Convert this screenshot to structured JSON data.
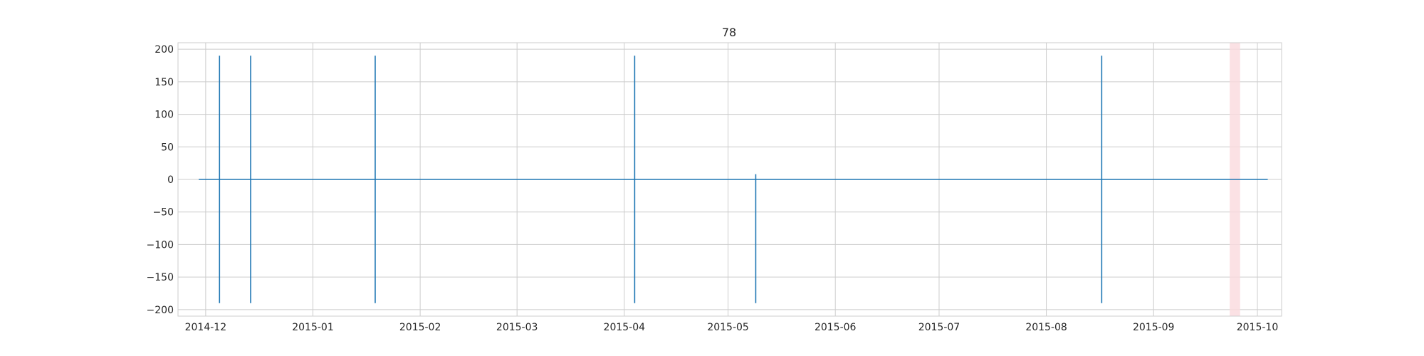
{
  "chart_data": {
    "type": "line",
    "title": "78",
    "xlabel": "",
    "ylabel": "",
    "x_axis": {
      "kind": "date",
      "range": [
        "2014-11-23",
        "2015-10-08"
      ],
      "ticks": [
        "2014-12-01",
        "2015-01-01",
        "2015-02-01",
        "2015-03-01",
        "2015-04-01",
        "2015-05-01",
        "2015-06-01",
        "2015-07-01",
        "2015-08-01",
        "2015-09-01",
        "2015-10-01"
      ],
      "tick_labels": [
        "2014-12",
        "2015-01",
        "2015-02",
        "2015-03",
        "2015-04",
        "2015-05",
        "2015-06",
        "2015-07",
        "2015-08",
        "2015-09",
        "2015-10"
      ]
    },
    "y_axis": {
      "range": [
        -210,
        210
      ],
      "ticks": [
        -200,
        -150,
        -100,
        -50,
        0,
        50,
        100,
        150,
        200
      ],
      "tick_labels": [
        "−200",
        "−150",
        "−100",
        "−50",
        "0",
        "50",
        "100",
        "150",
        "200"
      ]
    },
    "grid": true,
    "series": [
      {
        "color": "#1f77b4",
        "baseline": {
          "x": [
            "2014-11-29",
            "2015-10-04"
          ],
          "y": 0
        },
        "spikes": [
          {
            "x": "2014-12-05",
            "y": [
              -190,
              190
            ]
          },
          {
            "x": "2014-12-14",
            "y": [
              -190,
              190
            ]
          },
          {
            "x": "2015-01-19",
            "y": [
              -190,
              190
            ]
          },
          {
            "x": "2015-04-04",
            "y": [
              -190,
              190
            ]
          },
          {
            "x": "2015-05-09",
            "y": [
              -190,
              8
            ]
          },
          {
            "x": "2015-08-17",
            "y": [
              -190,
              190
            ]
          }
        ]
      }
    ],
    "shaded_span": {
      "x": [
        "2015-09-23",
        "2015-09-26"
      ],
      "color": "#fadadd"
    }
  }
}
